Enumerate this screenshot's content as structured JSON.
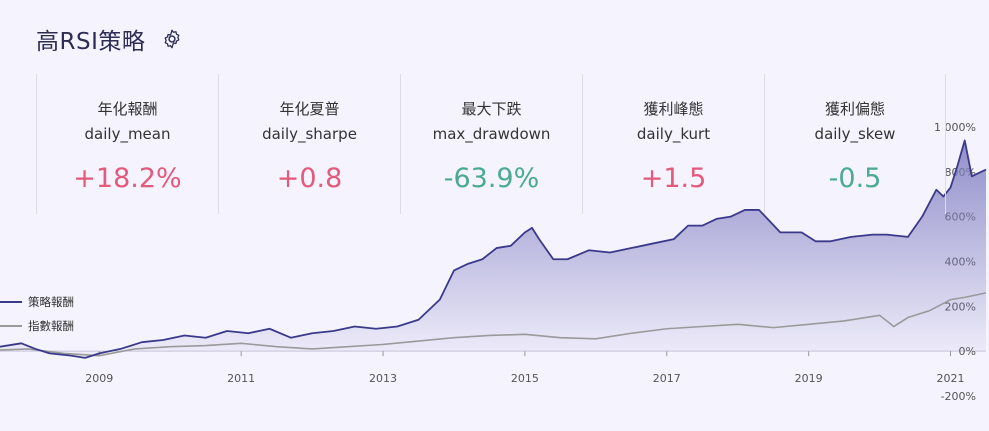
{
  "title": "高RSI策略",
  "icons": {
    "settings": "gear-icon"
  },
  "metrics": [
    {
      "cn": "年化報酬",
      "key": "daily_mean",
      "value": "+18.2%",
      "tone": "pos"
    },
    {
      "cn": "年化夏普",
      "key": "daily_sharpe",
      "value": "+0.8",
      "tone": "pos"
    },
    {
      "cn": "最大下跌",
      "key": "max_drawdown",
      "value": "-63.9%",
      "tone": "neg"
    },
    {
      "cn": "獲利峰態",
      "key": "daily_kurt",
      "value": "+1.5",
      "tone": "pos"
    },
    {
      "cn": "獲利偏態",
      "key": "daily_skew",
      "value": "-0.5",
      "tone": "neg"
    }
  ],
  "colors": {
    "strategy": "#3b3a8a",
    "index": "#9a9a9a",
    "fill": "#7f7dc0",
    "positive": "#e35a7a",
    "negative": "#4aaa92"
  },
  "chart_data": {
    "type": "area",
    "xlim": [
      2007.6,
      2021.5
    ],
    "ylim": [
      -200,
      1000
    ],
    "x_ticks": [
      2009,
      2011,
      2013,
      2015,
      2017,
      2019,
      2021
    ],
    "x_tick_labels": [
      "2009",
      "2011",
      "2013",
      "2015",
      "2017",
      "2019",
      "2021"
    ],
    "y_ticks": [
      -200,
      0,
      200,
      400,
      600,
      800,
      1000
    ],
    "y_tick_labels": [
      "-200%",
      "0%",
      "200%",
      "400%",
      "600%",
      "800%",
      "1 000%"
    ],
    "legend_position": "left",
    "series": [
      {
        "name": "策略報酬",
        "x": [
          2007.6,
          2007.9,
          2008.1,
          2008.3,
          2008.6,
          2008.8,
          2009.0,
          2009.3,
          2009.6,
          2009.9,
          2010.2,
          2010.5,
          2010.8,
          2011.1,
          2011.4,
          2011.7,
          2012.0,
          2012.3,
          2012.6,
          2012.9,
          2013.2,
          2013.5,
          2013.8,
          2014.0,
          2014.2,
          2014.4,
          2014.6,
          2014.8,
          2015.0,
          2015.1,
          2015.2,
          2015.4,
          2015.6,
          2015.9,
          2016.2,
          2016.5,
          2016.8,
          2017.1,
          2017.3,
          2017.5,
          2017.7,
          2017.9,
          2018.1,
          2018.3,
          2018.6,
          2018.9,
          2019.1,
          2019.3,
          2019.6,
          2019.9,
          2020.1,
          2020.4,
          2020.6,
          2020.7,
          2020.8,
          2020.9,
          2021.0,
          2021.1,
          2021.2,
          2021.3,
          2021.5
        ],
        "y": [
          20,
          35,
          10,
          -10,
          -20,
          -30,
          -10,
          10,
          40,
          50,
          70,
          60,
          90,
          80,
          100,
          60,
          80,
          90,
          110,
          100,
          110,
          140,
          230,
          360,
          390,
          410,
          460,
          470,
          530,
          550,
          500,
          410,
          410,
          450,
          440,
          460,
          480,
          500,
          560,
          560,
          590,
          600,
          630,
          630,
          530,
          530,
          490,
          490,
          510,
          520,
          520,
          510,
          600,
          660,
          720,
          690,
          730,
          830,
          940,
          780,
          810
        ]
      },
      {
        "name": "指數報酬",
        "x": [
          2007.6,
          2008.0,
          2008.5,
          2009.0,
          2009.5,
          2010.0,
          2010.5,
          2011.0,
          2011.5,
          2012.0,
          2012.5,
          2013.0,
          2013.5,
          2014.0,
          2014.5,
          2015.0,
          2015.5,
          2016.0,
          2016.5,
          2017.0,
          2017.5,
          2018.0,
          2018.5,
          2019.0,
          2019.5,
          2020.0,
          2020.2,
          2020.4,
          2020.7,
          2021.0,
          2021.2,
          2021.5
        ],
        "y": [
          5,
          10,
          -10,
          -20,
          10,
          20,
          25,
          35,
          20,
          10,
          20,
          30,
          45,
          60,
          70,
          75,
          60,
          55,
          80,
          100,
          110,
          120,
          105,
          120,
          135,
          160,
          110,
          150,
          180,
          230,
          240,
          260
        ]
      }
    ]
  }
}
